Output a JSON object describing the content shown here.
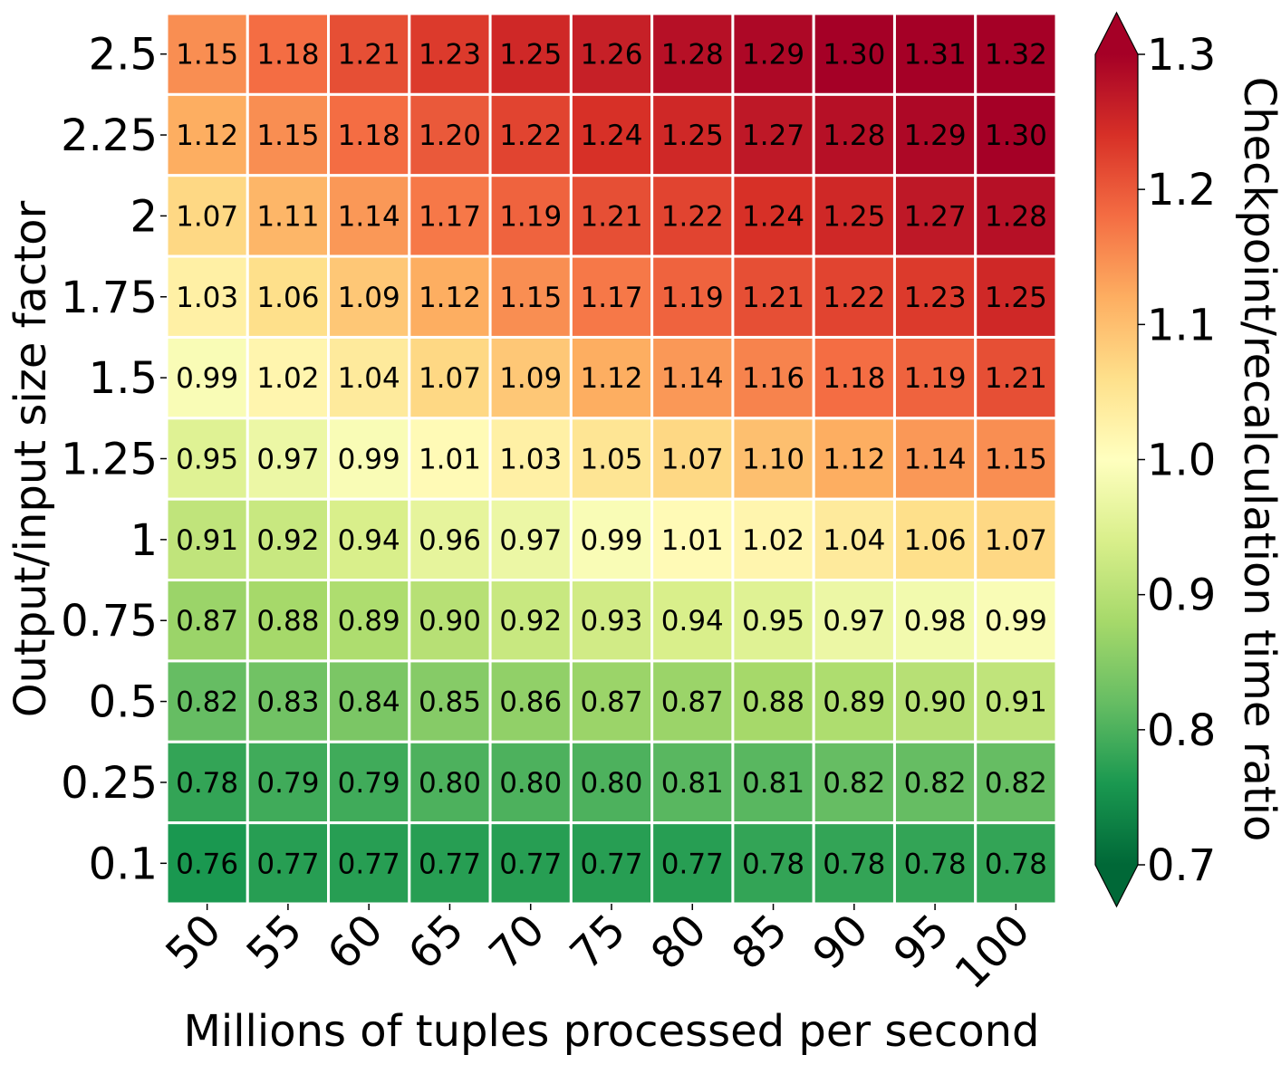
{
  "chart_data": {
    "type": "heatmap",
    "xlabel": "Millions of tuples processed per second",
    "ylabel": "Output/input size factor",
    "colorbar_label": "Checkpoint/recalculation time ratio",
    "x_categories": [
      "50",
      "55",
      "60",
      "65",
      "70",
      "75",
      "80",
      "85",
      "90",
      "95",
      "100"
    ],
    "y_categories": [
      "2.5",
      "2.25",
      "2",
      "1.75",
      "1.5",
      "1.25",
      "1",
      "0.75",
      "0.5",
      "0.25",
      "0.1"
    ],
    "values": [
      [
        1.15,
        1.18,
        1.21,
        1.23,
        1.25,
        1.26,
        1.28,
        1.29,
        1.3,
        1.31,
        1.32
      ],
      [
        1.12,
        1.15,
        1.18,
        1.2,
        1.22,
        1.24,
        1.25,
        1.27,
        1.28,
        1.29,
        1.3
      ],
      [
        1.07,
        1.11,
        1.14,
        1.17,
        1.19,
        1.21,
        1.22,
        1.24,
        1.25,
        1.27,
        1.28
      ],
      [
        1.03,
        1.06,
        1.09,
        1.12,
        1.15,
        1.17,
        1.19,
        1.21,
        1.22,
        1.23,
        1.25
      ],
      [
        0.99,
        1.02,
        1.04,
        1.07,
        1.09,
        1.12,
        1.14,
        1.16,
        1.18,
        1.19,
        1.21
      ],
      [
        0.95,
        0.97,
        0.99,
        1.01,
        1.03,
        1.05,
        1.07,
        1.1,
        1.12,
        1.14,
        1.15
      ],
      [
        0.91,
        0.92,
        0.94,
        0.96,
        0.97,
        0.99,
        1.01,
        1.02,
        1.04,
        1.06,
        1.07
      ],
      [
        0.87,
        0.88,
        0.89,
        0.9,
        0.92,
        0.93,
        0.94,
        0.95,
        0.97,
        0.98,
        0.99
      ],
      [
        0.82,
        0.83,
        0.84,
        0.85,
        0.86,
        0.87,
        0.87,
        0.88,
        0.89,
        0.9,
        0.91
      ],
      [
        0.78,
        0.79,
        0.79,
        0.8,
        0.8,
        0.8,
        0.81,
        0.81,
        0.82,
        0.82,
        0.82
      ],
      [
        0.76,
        0.77,
        0.77,
        0.77,
        0.77,
        0.77,
        0.77,
        0.78,
        0.78,
        0.78,
        0.78
      ]
    ],
    "vmin": 0.7,
    "vmax": 1.3,
    "colormap": "RdYlGn_r",
    "colorbar_extend": "both",
    "colorbar_ticks": [
      "0.7",
      "0.8",
      "0.9",
      "1.0",
      "1.1",
      "1.2",
      "1.3"
    ],
    "value_format": "2 decimals",
    "cell_border_color": "#ffffff",
    "grid": false
  }
}
